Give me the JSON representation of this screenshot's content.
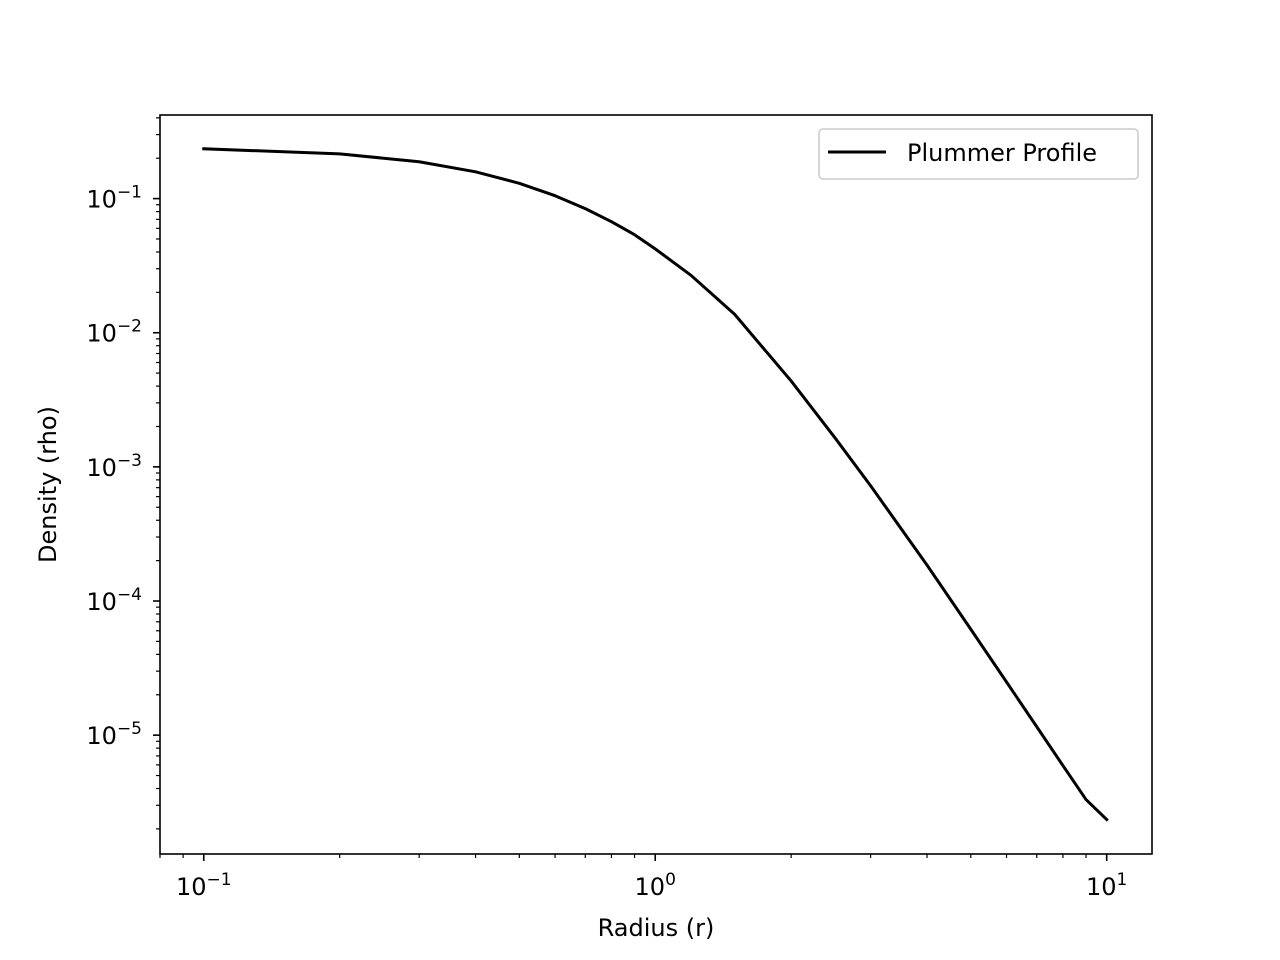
{
  "chart_data": {
    "type": "line",
    "xscale": "log",
    "yscale": "log",
    "xlabel": "Radius (r)",
    "ylabel": "Density (rho)",
    "xlim": [
      0.08,
      12.6
    ],
    "ylim": [
      1.3e-06,
      0.42
    ],
    "grid": false,
    "legend": {
      "location": "top-right",
      "entries": [
        "Plummer Profile"
      ]
    },
    "x_ticks": [
      {
        "value": 0.1,
        "base": "10",
        "exp": "−1"
      },
      {
        "value": 1,
        "base": "10",
        "exp": "0"
      },
      {
        "value": 10,
        "base": "10",
        "exp": "1"
      }
    ],
    "y_ticks": [
      {
        "value": 1e-05,
        "base": "10",
        "exp": "−5"
      },
      {
        "value": 0.0001,
        "base": "10",
        "exp": "−4"
      },
      {
        "value": 0.001,
        "base": "10",
        "exp": "−3"
      },
      {
        "value": 0.01,
        "base": "10",
        "exp": "−2"
      },
      {
        "value": 0.1,
        "base": "10",
        "exp": "−1"
      }
    ],
    "series": [
      {
        "name": "Plummer Profile",
        "color": "#000000",
        "x": [
          0.1,
          0.2,
          0.3,
          0.4,
          0.5,
          0.6,
          0.7,
          0.8,
          0.9,
          1.0,
          1.2,
          1.5,
          2.0,
          2.5,
          3.0,
          4.0,
          5.0,
          6.0,
          7.0,
          8.0,
          9.0,
          10.0
        ],
        "y": [
          0.2352,
          0.2155,
          0.1883,
          0.1584,
          0.13,
          0.1051,
          0.0842,
          0.0673,
          0.0538,
          0.0422,
          0.0268,
          0.0137,
          0.00437,
          0.00165,
          0.000723,
          0.000185,
          6.16e-05,
          2.49e-05,
          1.155e-05,
          5.93e-06,
          3.31e-06,
          2.35e-06
        ]
      }
    ]
  }
}
